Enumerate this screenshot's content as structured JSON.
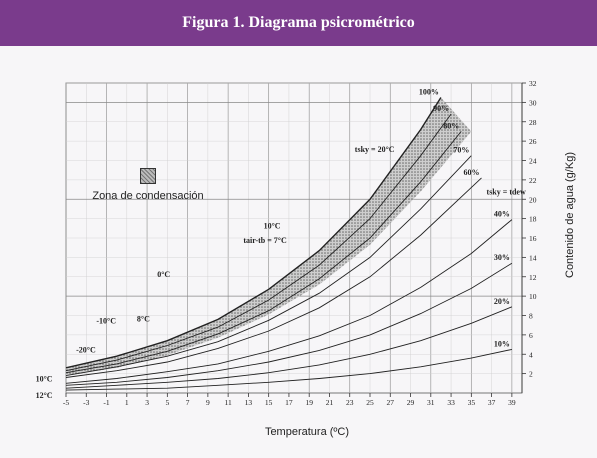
{
  "header": {
    "title": "Figura 1. Diagrama psicrométrico"
  },
  "legend": {
    "label": "Zona de condensación"
  },
  "chart_data": {
    "type": "line",
    "title": "",
    "xlabel": "Temperatura (ºC)",
    "ylabel": "Contenido de agua (g/Kg)",
    "xlim": [
      -5,
      40
    ],
    "ylim": [
      0,
      32
    ],
    "x_ticks": [
      "-5",
      "-3",
      "-1",
      "1",
      "3",
      "5",
      "7",
      "9",
      "11",
      "13",
      "15",
      "17",
      "19",
      "21",
      "23",
      "25",
      "27",
      "29",
      "31",
      "33",
      "35",
      "37",
      "39"
    ],
    "y_ticks": [
      "2",
      "4",
      "6",
      "8",
      "10",
      "12",
      "14",
      "16",
      "18",
      "20",
      "22",
      "24",
      "26",
      "28",
      "30",
      "32"
    ],
    "grid": true,
    "series": [
      {
        "name": "100%",
        "x": [
          -5,
          0,
          5,
          10,
          15,
          20,
          25,
          30,
          32
        ],
        "values": [
          2.6,
          3.8,
          5.4,
          7.6,
          10.7,
          14.7,
          20.0,
          27.2,
          30.5
        ]
      },
      {
        "name": "90%",
        "x": [
          -5,
          0,
          5,
          10,
          15,
          20,
          25,
          30,
          33
        ],
        "values": [
          2.3,
          3.4,
          4.9,
          6.8,
          9.6,
          13.2,
          18.0,
          24.5,
          28.8
        ]
      },
      {
        "name": "80%",
        "x": [
          -5,
          0,
          5,
          10,
          15,
          20,
          25,
          30,
          34
        ],
        "values": [
          2.1,
          3.0,
          4.3,
          6.1,
          8.5,
          11.8,
          16.0,
          21.8,
          27.0
        ]
      },
      {
        "name": "70%",
        "x": [
          -5,
          0,
          5,
          10,
          15,
          20,
          25,
          30,
          35
        ],
        "values": [
          1.8,
          2.7,
          3.8,
          5.3,
          7.5,
          10.3,
          14.0,
          19.0,
          24.5
        ]
      },
      {
        "name": "60%",
        "x": [
          -5,
          0,
          5,
          10,
          15,
          20,
          25,
          30,
          36
        ],
        "values": [
          1.6,
          2.3,
          3.2,
          4.6,
          6.4,
          8.8,
          12.0,
          16.3,
          22.2
        ]
      },
      {
        "name": "40%",
        "x": [
          -5,
          0,
          5,
          10,
          15,
          20,
          25,
          30,
          35,
          39
        ],
        "values": [
          1.0,
          1.5,
          2.2,
          3.0,
          4.3,
          5.9,
          8.0,
          10.9,
          14.4,
          17.9
        ]
      },
      {
        "name": "30%",
        "x": [
          -5,
          0,
          5,
          10,
          15,
          20,
          25,
          30,
          35,
          39
        ],
        "values": [
          0.8,
          1.1,
          1.6,
          2.3,
          3.2,
          4.4,
          6.0,
          8.2,
          10.8,
          13.4
        ]
      },
      {
        "name": "20%",
        "x": [
          -5,
          0,
          5,
          10,
          15,
          20,
          25,
          30,
          35,
          39
        ],
        "values": [
          0.5,
          0.8,
          1.1,
          1.5,
          2.1,
          2.9,
          4.0,
          5.4,
          7.2,
          8.9
        ]
      },
      {
        "name": "10%",
        "x": [
          -5,
          0,
          5,
          10,
          15,
          20,
          25,
          30,
          35,
          39
        ],
        "values": [
          0.3,
          0.4,
          0.5,
          0.8,
          1.1,
          1.5,
          2.0,
          2.7,
          3.6,
          4.5
        ]
      }
    ],
    "condensation_zone": {
      "upper": {
        "x": [
          -5,
          0,
          5,
          10,
          15,
          20,
          25,
          30,
          32
        ],
        "values": [
          2.6,
          3.8,
          5.4,
          7.6,
          10.7,
          14.7,
          20.0,
          27.2,
          30.5
        ]
      },
      "lower": {
        "x": [
          -5,
          0,
          5,
          10,
          15,
          20,
          25,
          30,
          35
        ],
        "values": [
          1.8,
          2.6,
          3.9,
          5.7,
          8.1,
          11.2,
          15.3,
          20.8,
          27.0
        ]
      }
    },
    "annotations": [
      {
        "text": "tsky = 20°C",
        "x": 23.5,
        "y": 24.9
      },
      {
        "text": "10°C",
        "x": 14.5,
        "y": 17.0
      },
      {
        "text": "tair-tb = 7°C",
        "x": 12.5,
        "y": 15.5
      },
      {
        "text": "0°C",
        "x": 4.0,
        "y": 12.0
      },
      {
        "text": "-10°C",
        "x": -2.0,
        "y": 7.2
      },
      {
        "text": "8°C",
        "x": 2.0,
        "y": 7.4
      },
      {
        "text": "-20°C",
        "x": -4.0,
        "y": 4.2
      },
      {
        "text": "10°C",
        "x": -8.0,
        "y": 1.2
      },
      {
        "text": "12°C",
        "x": -8.0,
        "y": -0.5
      },
      {
        "text": "tsky = tdew",
        "x": 36.5,
        "y": 20.5
      }
    ]
  }
}
